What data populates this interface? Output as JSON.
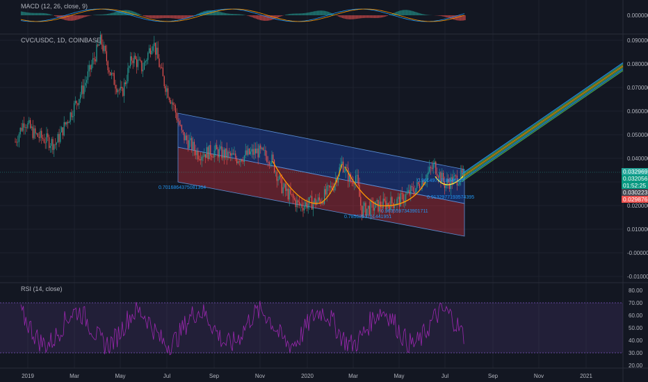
{
  "panes": {
    "macd_title": "MACD (12, 26, close, 9)",
    "main_title": "CVC/USDC, 1D, COINBASE",
    "rsi_title": "RSI (14, close)"
  },
  "colors": {
    "background": "#131722",
    "grid": "#1e222d",
    "upper_channel": "#1f4e79",
    "lower_channel": "#7a2a2a",
    "candle_up": "#26a69a",
    "candle_down": "#ef5350",
    "rsi_line": "#9c27b0",
    "rsi_band": "#2a1a45",
    "fib_label": "#2196f3",
    "arc": "#ff9800",
    "projection": "#4caf50"
  },
  "price_tags": [
    {
      "text": "0.032969",
      "color": "#26a69a"
    },
    {
      "text": "0.032056",
      "color": "#089981"
    },
    {
      "text": "01:52:25",
      "color": "#089981"
    },
    {
      "text": "0.030223",
      "color": "#434651"
    },
    {
      "text": "0.029876",
      "color": "#ef5350"
    }
  ],
  "chart_data": [
    {
      "type": "line",
      "title": "MACD (12, 26, close, 9)",
      "y_ticks": [
        "0.000000"
      ],
      "ylim": [
        -0.01,
        0.01
      ]
    },
    {
      "type": "candlestick",
      "title": "CVC/USDC, 1D, COINBASE",
      "x_ticks": [
        "2019",
        "Mar",
        "May",
        "Jul",
        "Sep",
        "Nov",
        "2020",
        "Mar",
        "May",
        "Jul",
        "Sep",
        "Nov",
        "2021"
      ],
      "y_ticks": [
        "0.090000",
        "0.080000",
        "0.070000",
        "0.060000",
        "0.050000",
        "0.040000",
        "0.030000",
        "0.020000",
        "0.010000",
        "-0.000000",
        "-0.010000"
      ],
      "ylim": [
        -0.013,
        0.093
      ],
      "fib_labels": [
        "0.7016864375081364",
        "0.7856253151441951",
        "0.9635597343901711",
        "0.9132977193574395",
        "0.9614973718846527"
      ],
      "current_price": 0.032969
    },
    {
      "type": "line",
      "title": "RSI (14, close)",
      "y_ticks": [
        "80.00",
        "70.00",
        "60.00",
        "50.00",
        "40.00",
        "30.00",
        "20.00"
      ],
      "ylim": [
        15,
        85
      ],
      "band": [
        30,
        70
      ]
    }
  ]
}
